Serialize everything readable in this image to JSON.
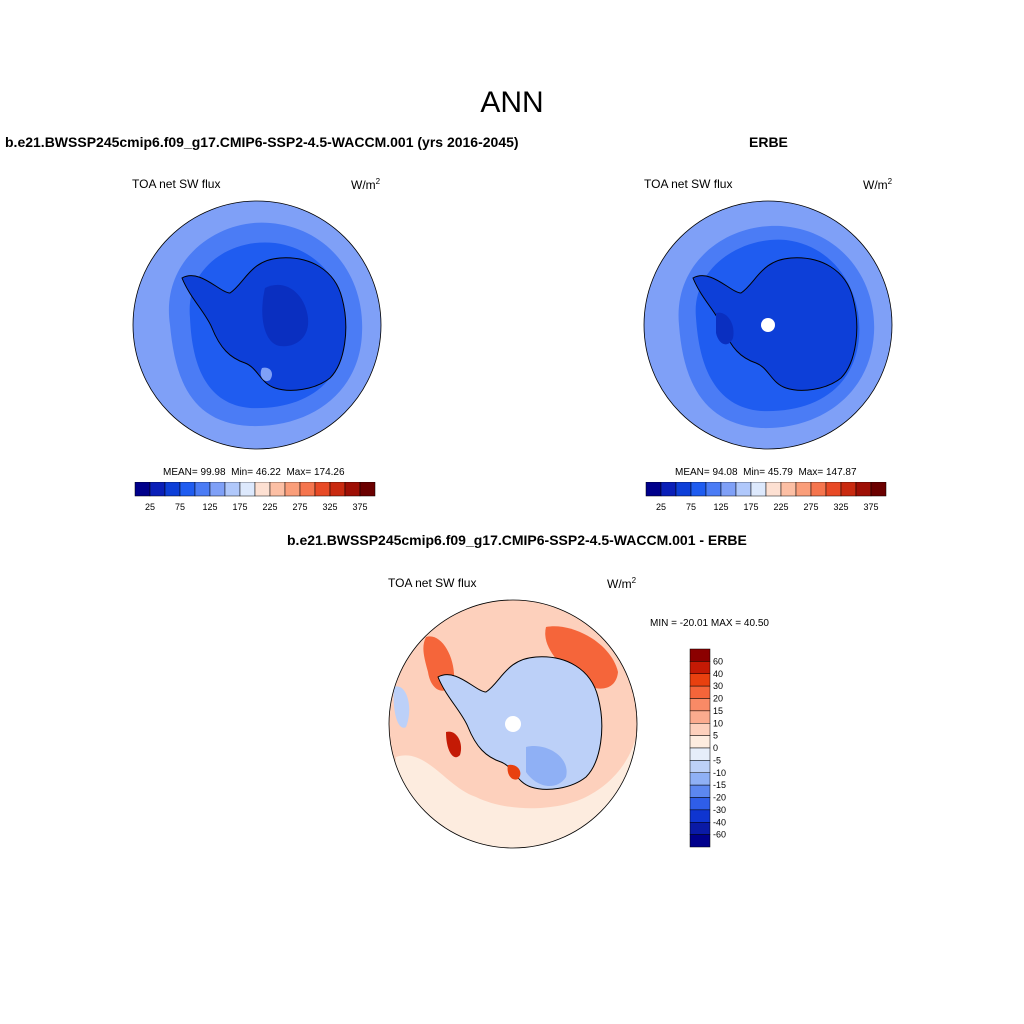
{
  "page_title": "ANN",
  "panels": [
    {
      "title": "b.e21.BWSSP245cmip6.f09_g17.CMIP6-SSP2-4.5-WACCM.001 (yrs 2016-2045)",
      "variable": "TOA net SW flux",
      "units": "W/m",
      "units_sup": "2",
      "stats": {
        "mean_label": "MEAN=",
        "mean": "99.98",
        "min_label": "Min=",
        "min": "46.22",
        "max_label": "Max=",
        "max": "174.26"
      }
    },
    {
      "title": "ERBE",
      "variable": "TOA net SW flux",
      "units": "W/m",
      "units_sup": "2",
      "stats": {
        "mean_label": "MEAN=",
        "mean": "94.08",
        "min_label": "Min=",
        "min": "45.79",
        "max_label": "Max=",
        "max": "147.87"
      }
    },
    {
      "title": "b.e21.BWSSP245cmip6.f09_g17.CMIP6-SSP2-4.5-WACCM.001 - ERBE",
      "variable": "TOA net SW flux",
      "units": "W/m",
      "units_sup": "2",
      "stats_text": "MIN = -20.01 MAX =  40.50"
    }
  ],
  "chart_data": [
    {
      "type": "heatmap",
      "projection": "south polar stereographic",
      "title": "b.e21.BWSSP245cmip6.f09_g17.CMIP6-SSP2-4.5-WACCM.001 (yrs 2016-2045)",
      "variable": "TOA net SW flux",
      "units": "W/m2",
      "mean": 99.98,
      "min": 46.22,
      "max": 174.26,
      "colorbar_levels": [
        25,
        50,
        75,
        100,
        125,
        150,
        175,
        200,
        225,
        250,
        275,
        300,
        325,
        350,
        375
      ],
      "colorbar_tick_labels": [
        "25",
        "75",
        "125",
        "175",
        "225",
        "275",
        "325",
        "375"
      ],
      "colorbar_colors": [
        "#00008b",
        "#0a1fb8",
        "#0d3fd8",
        "#1f5cf0",
        "#4b7cf5",
        "#7fa0f7",
        "#b0c8fb",
        "#dde9fd",
        "#fde0d2",
        "#fcbfa4",
        "#fa9e7a",
        "#f5754e",
        "#e84a26",
        "#c92a10",
        "#9e0f05",
        "#6b0000"
      ]
    },
    {
      "type": "heatmap",
      "projection": "south polar stereographic",
      "title": "ERBE",
      "variable": "TOA net SW flux",
      "units": "W/m2",
      "mean": 94.08,
      "min": 45.79,
      "max": 147.87,
      "colorbar_levels": [
        25,
        50,
        75,
        100,
        125,
        150,
        175,
        200,
        225,
        250,
        275,
        300,
        325,
        350,
        375
      ],
      "colorbar_tick_labels": [
        "25",
        "75",
        "125",
        "175",
        "225",
        "275",
        "325",
        "375"
      ],
      "colorbar_colors": [
        "#00008b",
        "#0a1fb8",
        "#0d3fd8",
        "#1f5cf0",
        "#4b7cf5",
        "#7fa0f7",
        "#b0c8fb",
        "#dde9fd",
        "#fde0d2",
        "#fcbfa4",
        "#fa9e7a",
        "#f5754e",
        "#e84a26",
        "#c92a10",
        "#9e0f05",
        "#6b0000"
      ]
    },
    {
      "type": "heatmap",
      "projection": "south polar stereographic",
      "title": "b.e21.BWSSP245cmip6.f09_g17.CMIP6-SSP2-4.5-WACCM.001 - ERBE",
      "variable": "TOA net SW flux",
      "units": "W/m2",
      "min": -20.01,
      "max": 40.5,
      "colorbar_levels": [
        60,
        40,
        30,
        20,
        15,
        10,
        5,
        0,
        -5,
        -10,
        -15,
        -20,
        -30,
        -40,
        -60
      ],
      "colorbar_tick_labels": [
        "60",
        "40",
        "30",
        "20",
        "15",
        "10",
        "5",
        "0",
        "-5",
        "-10",
        "-15",
        "-20",
        "-30",
        "-40",
        "-60"
      ],
      "colorbar_colors": [
        "#8b0000",
        "#c41a05",
        "#e8400f",
        "#f5653a",
        "#f98a66",
        "#fbab8e",
        "#fdd0bc",
        "#fdecdf",
        "#e6eefa",
        "#bcd0f8",
        "#8fb0f5",
        "#5c87f0",
        "#2f5ee8",
        "#0f35d0",
        "#0a1aa6",
        "#00008b"
      ]
    }
  ]
}
